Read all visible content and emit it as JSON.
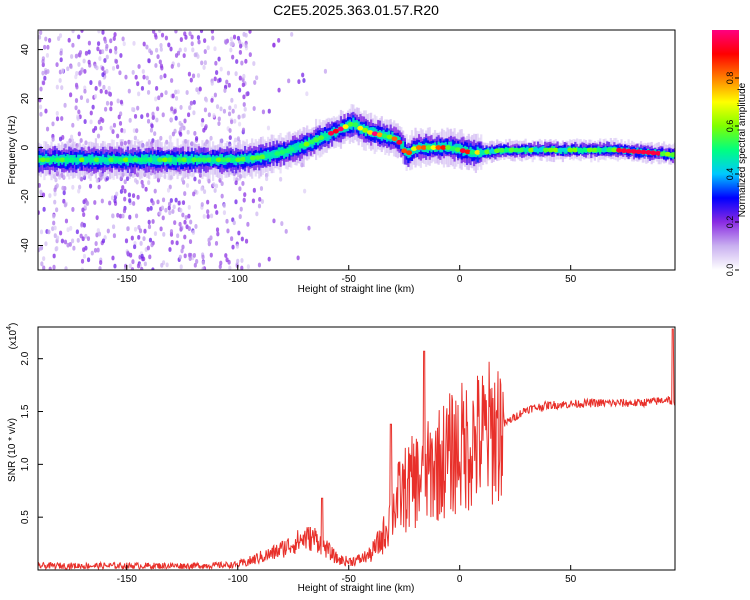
{
  "title": "C2E5.2025.363.01.57.R20",
  "chart_data": [
    {
      "type": "heatmap",
      "name": "spectrogram",
      "xlabel": "Height of straight line (km)",
      "ylabel": "Frequency (Hz)",
      "xlim": [
        -190,
        97
      ],
      "ylim": [
        -50,
        48
      ],
      "xticks": [
        -150,
        -100,
        -50,
        0,
        50
      ],
      "yticks": [
        -40,
        -20,
        0,
        20,
        40
      ],
      "ridge": {
        "x": [
          -190,
          -160,
          -140,
          -120,
          -100,
          -90,
          -80,
          -70,
          -60,
          -55,
          -48,
          -45,
          -40,
          -35,
          -30,
          -27,
          -24,
          -20,
          -15,
          -10,
          -5,
          0,
          5,
          10,
          20,
          30,
          50,
          70,
          85,
          97
        ],
        "freq": [
          -5,
          -5,
          -5,
          -5,
          -5,
          -4,
          -2,
          1,
          5,
          7,
          10,
          8,
          6,
          5,
          4,
          2,
          -3,
          0,
          0,
          0,
          0,
          -1,
          -2,
          -2,
          -1,
          -1,
          -1,
          -1,
          -2,
          -3
        ]
      },
      "colorbar": {
        "label": "Normalized spectral amplitude",
        "range": [
          0.0,
          1.0
        ],
        "ticks": [
          0.0,
          0.2,
          0.4,
          0.6,
          0.8
        ],
        "tick_labels": [
          "0.0",
          "0.2",
          "0.4",
          "0.6",
          "0.8"
        ],
        "colors": [
          "#ffffff",
          "#c9b0f0",
          "#8a2be2",
          "#0000ff",
          "#00c8ff",
          "#00ff80",
          "#80ff00",
          "#ffff00",
          "#ff8000",
          "#ff0000",
          "#ff0080"
        ]
      }
    },
    {
      "type": "line",
      "name": "snr",
      "xlabel": "Height of straight line (km)",
      "ylabel": "SNR (10 * v/v)",
      "multiplier_base": "x10",
      "multiplier_exp": "4",
      "xlim": [
        -190,
        97
      ],
      "ylim": [
        0,
        2.3
      ],
      "xticks": [
        -150,
        -100,
        -50,
        0,
        50
      ],
      "yticks": [
        0.5,
        1.0,
        1.5,
        2.0
      ],
      "ytick_labels": [
        "0.5",
        "1.0",
        "1.5",
        "2.0"
      ],
      "color": "#e8302a",
      "envelope": {
        "x": [
          -190,
          -120,
          -100,
          -95,
          -90,
          -85,
          -80,
          -75,
          -70,
          -65,
          -60,
          -55,
          -50,
          -45,
          -40,
          -35,
          -33,
          -30,
          -25,
          -20,
          -15,
          -10,
          -5,
          0,
          10,
          20,
          30,
          40,
          50,
          60,
          70,
          80,
          90,
          94,
          97
        ],
        "y": [
          0.04,
          0.04,
          0.05,
          0.08,
          0.12,
          0.15,
          0.2,
          0.25,
          0.3,
          0.3,
          0.2,
          0.1,
          0.08,
          0.1,
          0.15,
          0.3,
          0.4,
          0.6,
          0.75,
          0.85,
          0.9,
          1.0,
          1.08,
          1.15,
          1.25,
          1.38,
          1.52,
          1.56,
          1.57,
          1.58,
          1.58,
          1.58,
          1.6,
          1.62,
          1.55
        ]
      },
      "spikes": [
        {
          "x": -62,
          "y": 0.68
        },
        {
          "x": -31,
          "y": 1.38
        },
        {
          "x": -16,
          "y": 2.07
        },
        {
          "x": 96,
          "y": 2.28
        }
      ]
    }
  ]
}
